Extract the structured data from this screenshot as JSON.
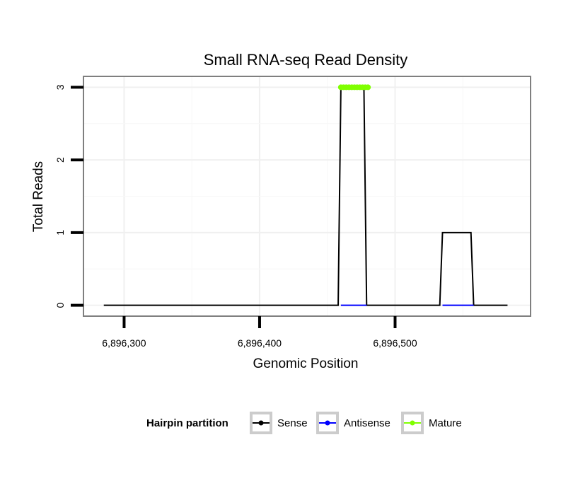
{
  "chart_data": {
    "type": "line",
    "title": "Small RNA-seq Read Density",
    "xlabel": "Genomic Position",
    "ylabel": "Total Reads",
    "xlim": [
      6896270,
      6896600
    ],
    "ylim": [
      -0.15,
      3.15
    ],
    "x_ticks": [
      {
        "value": 6896300,
        "label": "6,896,300"
      },
      {
        "value": 6896400,
        "label": "6,896,400"
      },
      {
        "value": 6896500,
        "label": "6,896,500"
      }
    ],
    "y_ticks": [
      {
        "value": 0,
        "label": "0"
      },
      {
        "value": 1,
        "label": "1"
      },
      {
        "value": 2,
        "label": "2"
      },
      {
        "value": 3,
        "label": "3"
      }
    ],
    "series": [
      {
        "name": "Sense",
        "color": "#000000",
        "x": [
          6896285,
          6896458,
          6896460,
          6896477,
          6896479,
          6896533,
          6896535,
          6896556,
          6896558,
          6896583
        ],
        "y": [
          0,
          0,
          3,
          3,
          0,
          0,
          1,
          1,
          0,
          0
        ]
      },
      {
        "name": "Antisense",
        "color": "#0000ff",
        "x": [
          6896460,
          6896479,
          6896535,
          6896558
        ],
        "y": [
          0,
          0,
          0,
          0
        ],
        "segments": [
          [
            0,
            1
          ],
          [
            2,
            3
          ]
        ]
      },
      {
        "name": "Mature",
        "color": "#7fff00",
        "x": [
          6896460,
          6896462,
          6896464,
          6896466,
          6896468,
          6896470,
          6896472,
          6896474,
          6896476,
          6896478,
          6896480
        ],
        "y": [
          3,
          3,
          3,
          3,
          3,
          3,
          3,
          3,
          3,
          3,
          3
        ]
      }
    ],
    "legend": {
      "title": "Hairpin partition",
      "position": "bottom",
      "entries": [
        "Sense",
        "Antisense",
        "Mature"
      ]
    }
  }
}
